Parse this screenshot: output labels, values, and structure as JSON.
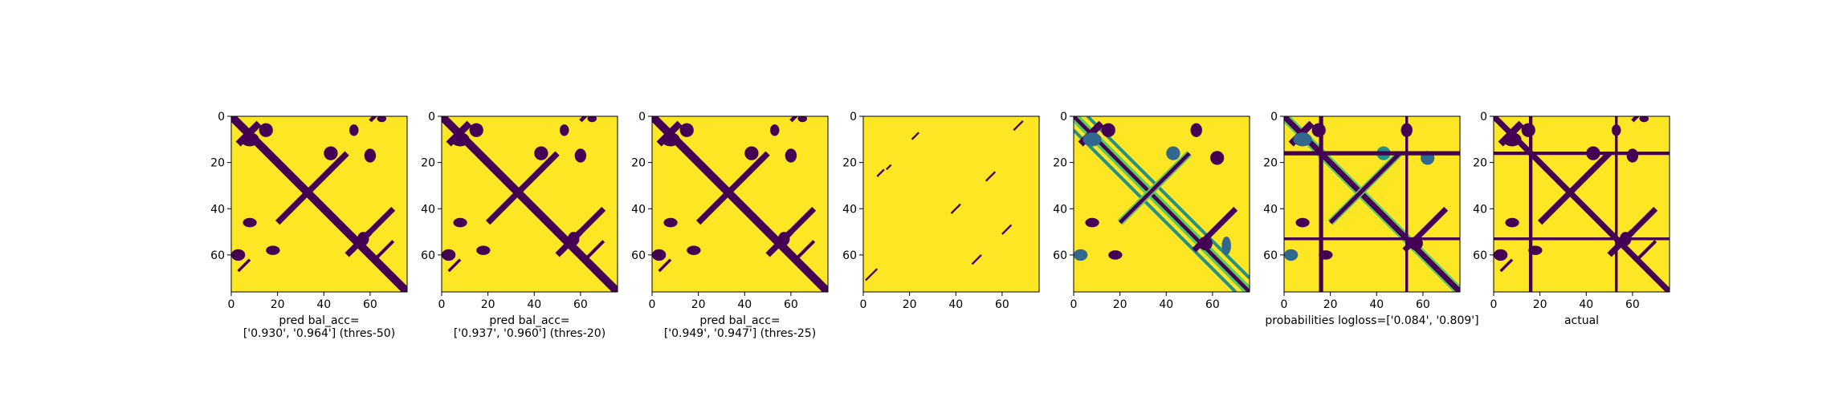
{
  "chart_data": [
    {
      "type": "heatmap",
      "matrix_size": 76,
      "xlim": [
        0,
        76
      ],
      "ylim": [
        76,
        0
      ],
      "xticks": [
        0,
        20,
        40,
        60
      ],
      "yticks": [
        0,
        20,
        40,
        60
      ],
      "colormap": "viridis",
      "binary": true,
      "xlabel_lines": [
        "pred bal_acc=",
        "['0.930', '0.964'] (thres-50)"
      ]
    },
    {
      "type": "heatmap",
      "matrix_size": 76,
      "xlim": [
        0,
        76
      ],
      "ylim": [
        76,
        0
      ],
      "xticks": [
        0,
        20,
        40,
        60
      ],
      "yticks": [
        0,
        20,
        40,
        60
      ],
      "colormap": "viridis",
      "binary": true,
      "xlabel_lines": [
        "pred bal_acc=",
        "['0.937', '0.960'] (thres-20)"
      ]
    },
    {
      "type": "heatmap",
      "matrix_size": 76,
      "xlim": [
        0,
        76
      ],
      "ylim": [
        76,
        0
      ],
      "xticks": [
        0,
        20,
        40,
        60
      ],
      "yticks": [
        0,
        20,
        40,
        60
      ],
      "colormap": "viridis",
      "binary": true,
      "xlabel_lines": [
        "pred bal_acc=",
        "['0.949', '0.947'] (thres-25)"
      ]
    },
    {
      "type": "heatmap",
      "matrix_size": 76,
      "xlim": [
        0,
        76
      ],
      "ylim": [
        76,
        0
      ],
      "xticks": [
        0,
        20,
        40,
        60
      ],
      "yticks": [
        0,
        20,
        40,
        60
      ],
      "colormap": "viridis",
      "binary": true,
      "xlabel_lines": []
    },
    {
      "type": "heatmap",
      "matrix_size": 76,
      "xlim": [
        0,
        76
      ],
      "ylim": [
        76,
        0
      ],
      "xticks": [
        0,
        20,
        40,
        60
      ],
      "yticks": [
        0,
        20,
        40,
        60
      ],
      "colormap": "viridis",
      "binary": false,
      "xlabel_lines": []
    },
    {
      "type": "heatmap",
      "matrix_size": 76,
      "xlim": [
        0,
        76
      ],
      "ylim": [
        76,
        0
      ],
      "xticks": [
        0,
        20,
        40,
        60
      ],
      "yticks": [
        0,
        20,
        40,
        60
      ],
      "colormap": "viridis",
      "binary": false,
      "xlabel_lines": [
        "probabilities logloss=['0.084', '0.809']"
      ]
    },
    {
      "type": "heatmap",
      "matrix_size": 76,
      "xlim": [
        0,
        76
      ],
      "ylim": [
        76,
        0
      ],
      "xticks": [
        0,
        20,
        40,
        60
      ],
      "yticks": [
        0,
        20,
        40,
        60
      ],
      "colormap": "viridis",
      "binary": true,
      "xlabel_lines": [
        "actual"
      ]
    }
  ],
  "colors": {
    "low": "#440154",
    "mid_low": "#31688e",
    "mid": "#21918c",
    "mid_high": "#5ec962",
    "high": "#fde725"
  }
}
